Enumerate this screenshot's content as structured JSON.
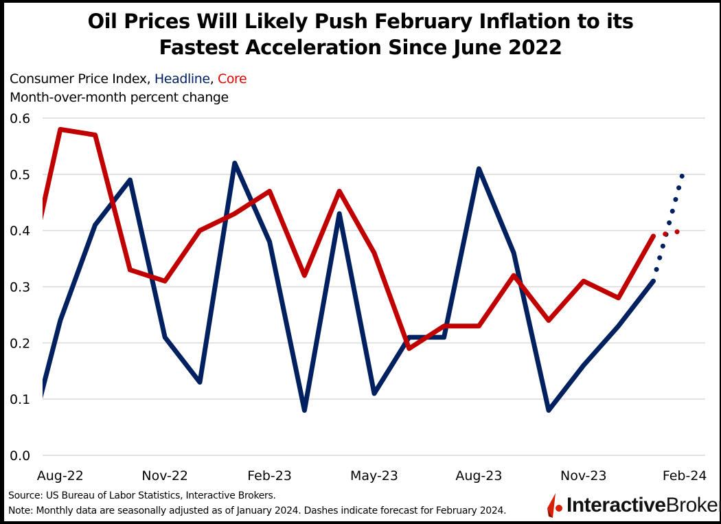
{
  "title_line1": "Oil Prices Will Likely Push February Inflation to its",
  "title_line2": "Fastest Acceleration Since June 2022",
  "subtitle": {
    "prefix": "Consumer Price Index, ",
    "headline": "Headline",
    "sep": ", ",
    "core": "Core",
    "line2": "Month-over-month percent change"
  },
  "source": "Source:  US Bureau of Labor Statistics, Interactive Brokers.",
  "note": "Note: Monthly data are seasonally adjusted as of January 2024. Dashes indicate forecast for February 2024.",
  "logo": {
    "bold": "Interactive",
    "regular": "Brokers"
  },
  "colors": {
    "headline": "#002060",
    "core": "#C00000",
    "grid": "#d9d9d9"
  },
  "chart_data": {
    "type": "line",
    "ylim": [
      0,
      0.6
    ],
    "yticks": [
      "0.0",
      "0.1",
      "0.2",
      "0.3",
      "0.4",
      "0.5",
      "0.6"
    ],
    "grid": true,
    "categories": [
      "Jul-22",
      "Aug-22",
      "Sep-22",
      "Oct-22",
      "Nov-22",
      "Dec-22",
      "Jan-23",
      "Feb-23",
      "Mar-23",
      "Apr-23",
      "May-23",
      "Jun-23",
      "Jul-23",
      "Aug-23",
      "Sep-23",
      "Oct-23",
      "Nov-23",
      "Dec-23",
      "Jan-24",
      "Feb-24"
    ],
    "xticks": [
      "Aug-22",
      "Nov-22",
      "Feb-23",
      "May-23",
      "Aug-23",
      "Nov-23",
      "Feb-24"
    ],
    "series": [
      {
        "name": "Headline",
        "color": "#002060",
        "values": [
          0.0,
          0.24,
          0.41,
          0.49,
          0.21,
          0.13,
          0.52,
          0.38,
          0.08,
          0.43,
          0.11,
          0.21,
          0.21,
          0.51,
          0.36,
          0.08,
          0.16,
          0.23,
          0.31,
          0.51
        ],
        "forecast_from": "Jan-24"
      },
      {
        "name": "Core",
        "color": "#C00000",
        "values": [
          0.3,
          0.58,
          0.57,
          0.33,
          0.31,
          0.4,
          0.43,
          0.47,
          0.32,
          0.47,
          0.36,
          0.19,
          0.23,
          0.23,
          0.32,
          0.24,
          0.31,
          0.28,
          0.39,
          0.4
        ],
        "forecast_from": "Jan-24"
      }
    ]
  }
}
